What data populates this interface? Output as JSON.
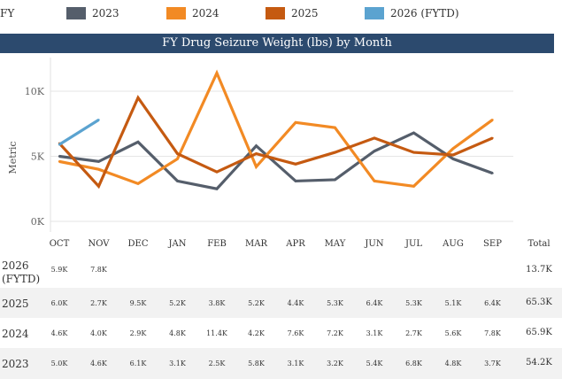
{
  "legend": {
    "title": "FY",
    "items": [
      {
        "label": "2023",
        "color": "#555e6b"
      },
      {
        "label": "2024",
        "color": "#f28a24"
      },
      {
        "label": "2025",
        "color": "#c55a11"
      },
      {
        "label": "2026 (FYTD)",
        "color": "#5ba3d0"
      }
    ]
  },
  "chart_data": {
    "type": "line",
    "title": "FY Drug Seizure Weight (lbs) by Month",
    "ylabel": "Metric",
    "xlabel": "",
    "ylim": [
      0,
      12000
    ],
    "yticks": [
      {
        "value": 0,
        "label": "0K"
      },
      {
        "value": 5000,
        "label": "5K"
      },
      {
        "value": 10000,
        "label": "10K"
      }
    ],
    "categories": [
      "OCT",
      "NOV",
      "DEC",
      "JAN",
      "FEB",
      "MAR",
      "APR",
      "MAY",
      "JUN",
      "JUL",
      "AUG",
      "SEP"
    ],
    "series": [
      {
        "name": "2023",
        "color": "#555e6b",
        "values": [
          5000,
          4600,
          6100,
          3100,
          2500,
          5800,
          3100,
          3200,
          5400,
          6800,
          4800,
          3700
        ]
      },
      {
        "name": "2024",
        "color": "#f28a24",
        "values": [
          4600,
          4000,
          2900,
          4800,
          11400,
          4200,
          7600,
          7200,
          3100,
          2700,
          5600,
          7800
        ]
      },
      {
        "name": "2025",
        "color": "#c55a11",
        "values": [
          6000,
          2700,
          9500,
          5200,
          3800,
          5200,
          4400,
          5300,
          6400,
          5300,
          5100,
          6400
        ]
      },
      {
        "name": "2026 (FYTD)",
        "color": "#5ba3d0",
        "values": [
          5900,
          7800,
          null,
          null,
          null,
          null,
          null,
          null,
          null,
          null,
          null,
          null
        ]
      }
    ]
  },
  "table": {
    "total_header": "Total",
    "rows": [
      {
        "label": "2026 (FYTD)",
        "cells": [
          "5.9K",
          "7.8K",
          "",
          "",
          "",
          "",
          "",
          "",
          "",
          "",
          "",
          ""
        ],
        "total": "13.7K"
      },
      {
        "label": "2025",
        "cells": [
          "6.0K",
          "2.7K",
          "9.5K",
          "5.2K",
          "3.8K",
          "5.2K",
          "4.4K",
          "5.3K",
          "6.4K",
          "5.3K",
          "5.1K",
          "6.4K"
        ],
        "total": "65.3K"
      },
      {
        "label": "2024",
        "cells": [
          "4.6K",
          "4.0K",
          "2.9K",
          "4.8K",
          "11.4K",
          "4.2K",
          "7.6K",
          "7.2K",
          "3.1K",
          "2.7K",
          "5.6K",
          "7.8K"
        ],
        "total": "65.9K"
      },
      {
        "label": "2023",
        "cells": [
          "5.0K",
          "4.6K",
          "6.1K",
          "3.1K",
          "2.5K",
          "5.8K",
          "3.1K",
          "3.2K",
          "5.4K",
          "6.8K",
          "4.8K",
          "3.7K"
        ],
        "total": "54.2K"
      }
    ]
  }
}
